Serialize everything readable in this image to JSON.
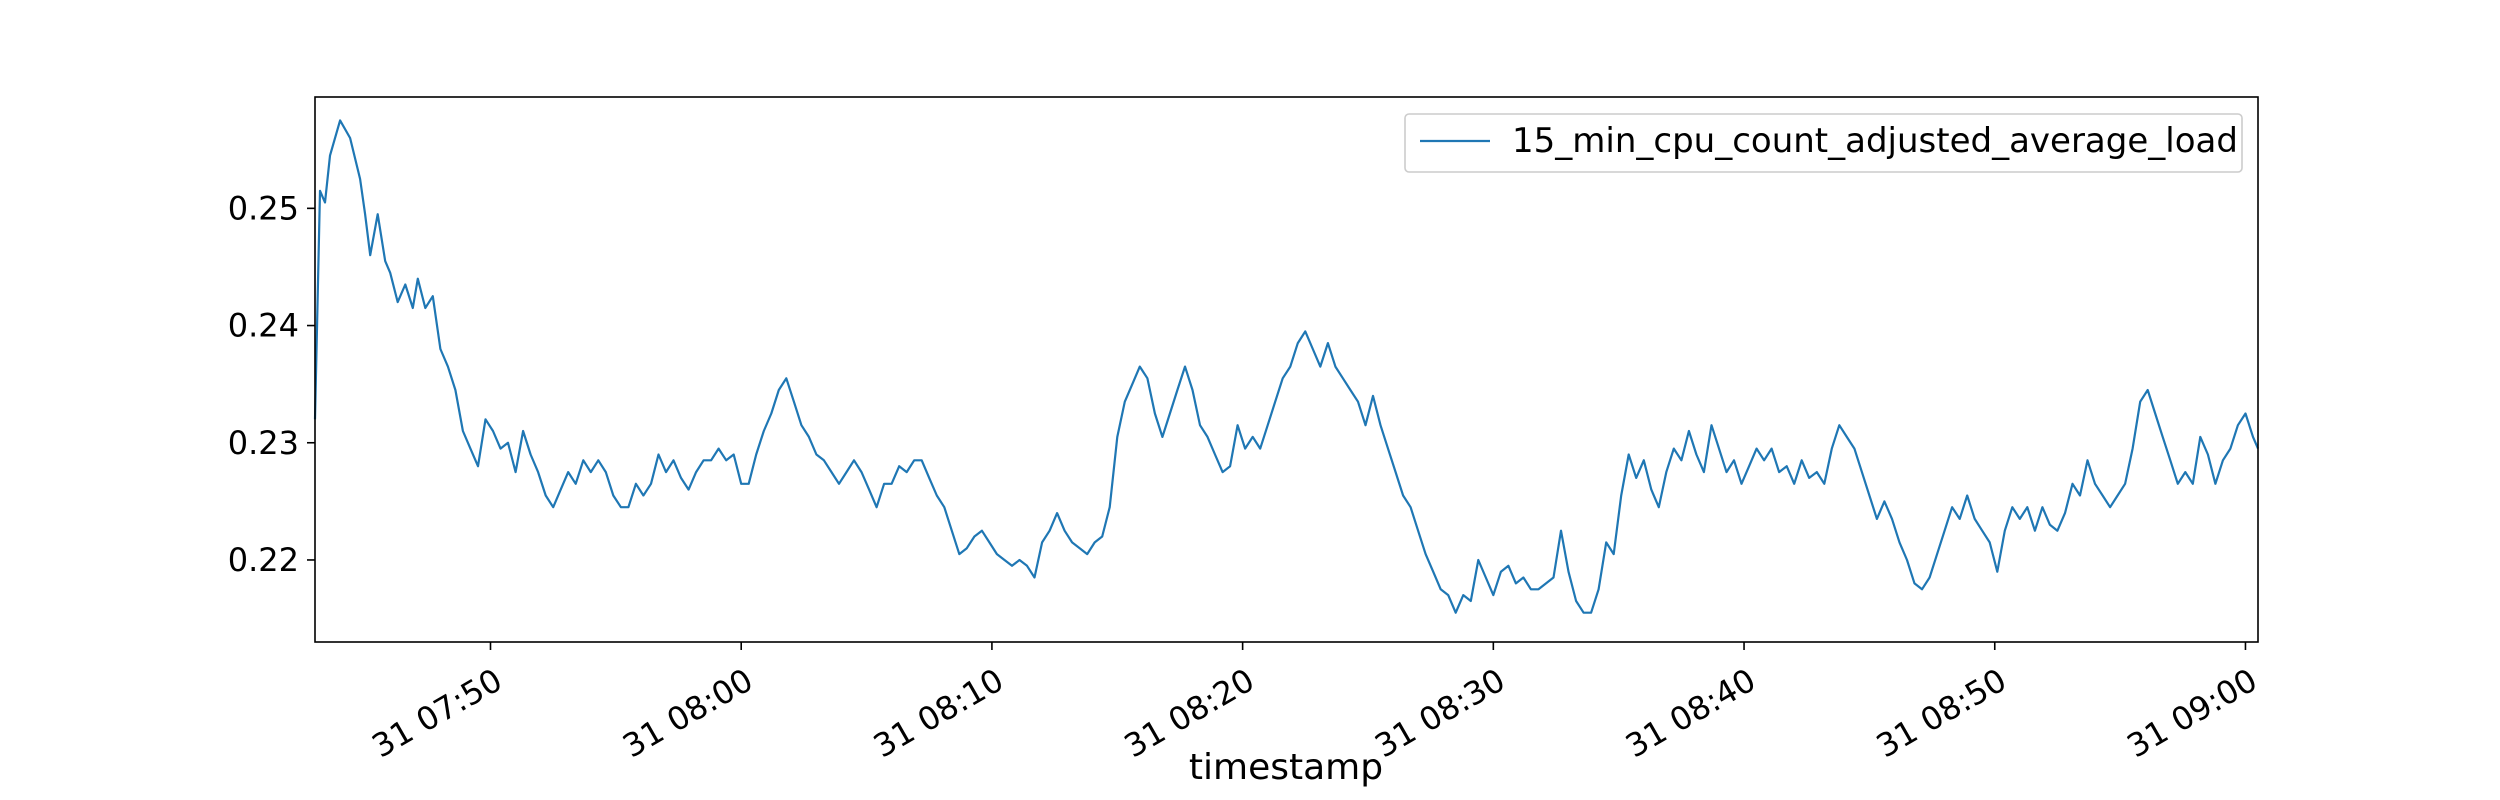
{
  "colors": {
    "series": "#1f77b4",
    "axis": "#000000",
    "legend_border": "#cccccc",
    "background": "#ffffff"
  },
  "chart_data": {
    "type": "line",
    "title": "",
    "xlabel": "timestamp",
    "ylabel": "",
    "grid": false,
    "legend_placement": "top-right",
    "xlim": [
      "31 07:43",
      "31 09:00:30"
    ],
    "ylim": [
      0.213,
      0.2595
    ],
    "x_ticks": [
      "31 07:50",
      "31 08:00",
      "31 08:10",
      "31 08:20",
      "31 08:30",
      "31 08:40",
      "31 08:50",
      "31 09:00"
    ],
    "y_ticks": [
      "0.22",
      "0.23",
      "0.24",
      "0.25"
    ],
    "series": [
      {
        "name": "15_min_cpu_count_adjusted_average_load",
        "points": [
          [
            "31 07:43",
            0.232
          ],
          [
            "31 07:43:12",
            0.2515
          ],
          [
            "31 07:43:24",
            0.2505
          ],
          [
            "31 07:43:36",
            0.2545
          ],
          [
            "31 07:44",
            0.2575
          ],
          [
            "31 07:44:24",
            0.256
          ],
          [
            "31 07:44:48",
            0.2525
          ],
          [
            "31 07:45",
            0.2495
          ],
          [
            "31 07:45:12",
            0.246
          ],
          [
            "31 07:45:30",
            0.2495
          ],
          [
            "31 07:45:48",
            0.2455
          ],
          [
            "31 07:46",
            0.2445
          ],
          [
            "31 07:46:18",
            0.242
          ],
          [
            "31 07:46:36",
            0.2435
          ],
          [
            "31 07:46:54",
            0.2415
          ],
          [
            "31 07:47:06",
            0.244
          ],
          [
            "31 07:47:24",
            0.2415
          ],
          [
            "31 07:47:42",
            0.2425
          ],
          [
            "31 07:48",
            0.238
          ],
          [
            "31 07:48:18",
            0.2365
          ],
          [
            "31 07:48:36",
            0.2345
          ],
          [
            "31 07:48:54",
            0.231
          ],
          [
            "31 07:49:12",
            0.2295
          ],
          [
            "31 07:49:30",
            0.228
          ],
          [
            "31 07:49:48",
            0.232
          ],
          [
            "31 07:50:06",
            0.231
          ],
          [
            "31 07:50:24",
            0.2295
          ],
          [
            "31 07:50:42",
            0.23
          ],
          [
            "31 07:51",
            0.2275
          ],
          [
            "31 07:51:18",
            0.231
          ],
          [
            "31 07:51:36",
            0.229
          ],
          [
            "31 07:51:54",
            0.2275
          ],
          [
            "31 07:52:12",
            0.2255
          ],
          [
            "31 07:52:30",
            0.2245
          ],
          [
            "31 07:52:48",
            0.226
          ],
          [
            "31 07:53:06",
            0.2275
          ],
          [
            "31 07:53:24",
            0.2265
          ],
          [
            "31 07:53:42",
            0.2285
          ],
          [
            "31 07:54",
            0.2275
          ],
          [
            "31 07:54:18",
            0.2285
          ],
          [
            "31 07:54:36",
            0.2275
          ],
          [
            "31 07:54:54",
            0.2255
          ],
          [
            "31 07:55:12",
            0.2245
          ],
          [
            "31 07:55:30",
            0.2245
          ],
          [
            "31 07:55:48",
            0.2265
          ],
          [
            "31 07:56:06",
            0.2255
          ],
          [
            "31 07:56:24",
            0.2265
          ],
          [
            "31 07:56:42",
            0.229
          ],
          [
            "31 07:57",
            0.2275
          ],
          [
            "31 07:57:18",
            0.2285
          ],
          [
            "31 07:57:36",
            0.227
          ],
          [
            "31 07:57:54",
            0.226
          ],
          [
            "31 07:58:12",
            0.2275
          ],
          [
            "31 07:58:30",
            0.2285
          ],
          [
            "31 07:58:48",
            0.2285
          ],
          [
            "31 07:59:06",
            0.2295
          ],
          [
            "31 07:59:24",
            0.2285
          ],
          [
            "31 07:59:42",
            0.229
          ],
          [
            "31 08:00",
            0.2265
          ],
          [
            "31 08:00:18",
            0.2265
          ],
          [
            "31 08:00:36",
            0.229
          ],
          [
            "31 08:00:54",
            0.231
          ],
          [
            "31 08:01:12",
            0.2325
          ],
          [
            "31 08:01:30",
            0.2345
          ],
          [
            "31 08:01:48",
            0.2355
          ],
          [
            "31 08:02:06",
            0.2335
          ],
          [
            "31 08:02:24",
            0.2315
          ],
          [
            "31 08:02:42",
            0.2305
          ],
          [
            "31 08:03",
            0.229
          ],
          [
            "31 08:03:18",
            0.2285
          ],
          [
            "31 08:03:36",
            0.2275
          ],
          [
            "31 08:03:54",
            0.2265
          ],
          [
            "31 08:04:12",
            0.2275
          ],
          [
            "31 08:04:30",
            0.2285
          ],
          [
            "31 08:04:48",
            0.2275
          ],
          [
            "31 08:05:06",
            0.226
          ],
          [
            "31 08:05:24",
            0.2245
          ],
          [
            "31 08:05:42",
            0.2265
          ],
          [
            "31 08:06",
            0.2265
          ],
          [
            "31 08:06:18",
            0.228
          ],
          [
            "31 08:06:36",
            0.2275
          ],
          [
            "31 08:06:54",
            0.2285
          ],
          [
            "31 08:07:12",
            0.2285
          ],
          [
            "31 08:07:30",
            0.227
          ],
          [
            "31 08:07:48",
            0.2255
          ],
          [
            "31 08:08:06",
            0.2245
          ],
          [
            "31 08:08:24",
            0.2225
          ],
          [
            "31 08:08:42",
            0.2205
          ],
          [
            "31 08:09",
            0.221
          ],
          [
            "31 08:09:18",
            0.222
          ],
          [
            "31 08:09:36",
            0.2225
          ],
          [
            "31 08:09:54",
            0.2215
          ],
          [
            "31 08:10:12",
            0.2205
          ],
          [
            "31 08:10:30",
            0.22
          ],
          [
            "31 08:10:48",
            0.2195
          ],
          [
            "31 08:11:06",
            0.22
          ],
          [
            "31 08:11:24",
            0.2195
          ],
          [
            "31 08:11:42",
            0.2185
          ],
          [
            "31 08:12",
            0.2215
          ],
          [
            "31 08:12:18",
            0.2225
          ],
          [
            "31 08:12:36",
            0.224
          ],
          [
            "31 08:12:54",
            0.2225
          ],
          [
            "31 08:13:12",
            0.2215
          ],
          [
            "31 08:13:30",
            0.221
          ],
          [
            "31 08:13:48",
            0.2205
          ],
          [
            "31 08:14:06",
            0.2215
          ],
          [
            "31 08:14:24",
            0.222
          ],
          [
            "31 08:14:42",
            0.2245
          ],
          [
            "31 08:15",
            0.2305
          ],
          [
            "31 08:15:18",
            0.2335
          ],
          [
            "31 08:15:36",
            0.235
          ],
          [
            "31 08:15:54",
            0.2365
          ],
          [
            "31 08:16:12",
            0.2355
          ],
          [
            "31 08:16:30",
            0.2325
          ],
          [
            "31 08:16:48",
            0.2305
          ],
          [
            "31 08:17:06",
            0.2325
          ],
          [
            "31 08:17:24",
            0.2345
          ],
          [
            "31 08:17:42",
            0.2365
          ],
          [
            "31 08:18",
            0.2345
          ],
          [
            "31 08:18:18",
            0.2315
          ],
          [
            "31 08:18:36",
            0.2305
          ],
          [
            "31 08:18:54",
            0.229
          ],
          [
            "31 08:19:12",
            0.2275
          ],
          [
            "31 08:19:30",
            0.228
          ],
          [
            "31 08:19:48",
            0.2315
          ],
          [
            "31 08:20:06",
            0.2295
          ],
          [
            "31 08:20:24",
            0.2305
          ],
          [
            "31 08:20:42",
            0.2295
          ],
          [
            "31 08:21",
            0.2315
          ],
          [
            "31 08:21:18",
            0.2335
          ],
          [
            "31 08:21:36",
            0.2355
          ],
          [
            "31 08:21:54",
            0.2365
          ],
          [
            "31 08:22:12",
            0.2385
          ],
          [
            "31 08:22:30",
            0.2395
          ],
          [
            "31 08:22:48",
            0.238
          ],
          [
            "31 08:23:06",
            0.2365
          ],
          [
            "31 08:23:24",
            0.2385
          ],
          [
            "31 08:23:42",
            0.2365
          ],
          [
            "31 08:24",
            0.2355
          ],
          [
            "31 08:24:18",
            0.2345
          ],
          [
            "31 08:24:36",
            0.2335
          ],
          [
            "31 08:24:54",
            0.2315
          ],
          [
            "31 08:25:12",
            0.234
          ],
          [
            "31 08:25:30",
            0.2315
          ],
          [
            "31 08:25:48",
            0.2295
          ],
          [
            "31 08:26:06",
            0.2275
          ],
          [
            "31 08:26:24",
            0.2255
          ],
          [
            "31 08:26:42",
            0.2245
          ],
          [
            "31 08:27",
            0.2225
          ],
          [
            "31 08:27:18",
            0.2205
          ],
          [
            "31 08:27:36",
            0.219
          ],
          [
            "31 08:27:54",
            0.2175
          ],
          [
            "31 08:28:12",
            0.217
          ],
          [
            "31 08:28:30",
            0.2155
          ],
          [
            "31 08:28:48",
            0.217
          ],
          [
            "31 08:29:06",
            0.2165
          ],
          [
            "31 08:29:24",
            0.22
          ],
          [
            "31 08:29:42",
            0.2185
          ],
          [
            "31 08:30",
            0.217
          ],
          [
            "31 08:30:18",
            0.219
          ],
          [
            "31 08:30:36",
            0.2195
          ],
          [
            "31 08:30:54",
            0.218
          ],
          [
            "31 08:31:12",
            0.2185
          ],
          [
            "31 08:31:30",
            0.2175
          ],
          [
            "31 08:31:48",
            0.2175
          ],
          [
            "31 08:32:06",
            0.218
          ],
          [
            "31 08:32:24",
            0.2185
          ],
          [
            "31 08:32:42",
            0.2225
          ],
          [
            "31 08:33",
            0.219
          ],
          [
            "31 08:33:18",
            0.2165
          ],
          [
            "31 08:33:36",
            0.2155
          ],
          [
            "31 08:33:54",
            0.2155
          ],
          [
            "31 08:34:12",
            0.2175
          ],
          [
            "31 08:34:30",
            0.2215
          ],
          [
            "31 08:34:48",
            0.2205
          ],
          [
            "31 08:35:06",
            0.2255
          ],
          [
            "31 08:35:24",
            0.229
          ],
          [
            "31 08:35:42",
            0.227
          ],
          [
            "31 08:36",
            0.2285
          ],
          [
            "31 08:36:18",
            0.226
          ],
          [
            "31 08:36:36",
            0.2245
          ],
          [
            "31 08:36:54",
            0.2275
          ],
          [
            "31 08:37:12",
            0.2295
          ],
          [
            "31 08:37:30",
            0.2285
          ],
          [
            "31 08:37:48",
            0.231
          ],
          [
            "31 08:38:06",
            0.229
          ],
          [
            "31 08:38:24",
            0.2275
          ],
          [
            "31 08:38:42",
            0.2315
          ],
          [
            "31 08:39",
            0.2295
          ],
          [
            "31 08:39:18",
            0.2275
          ],
          [
            "31 08:39:36",
            0.2285
          ],
          [
            "31 08:39:54",
            0.2265
          ],
          [
            "31 08:40:12",
            0.228
          ],
          [
            "31 08:40:30",
            0.2295
          ],
          [
            "31 08:40:48",
            0.2285
          ],
          [
            "31 08:41:06",
            0.2295
          ],
          [
            "31 08:41:24",
            0.2275
          ],
          [
            "31 08:41:42",
            0.228
          ],
          [
            "31 08:42",
            0.2265
          ],
          [
            "31 08:42:18",
            0.2285
          ],
          [
            "31 08:42:36",
            0.227
          ],
          [
            "31 08:42:54",
            0.2275
          ],
          [
            "31 08:43:12",
            0.2265
          ],
          [
            "31 08:43:30",
            0.2295
          ],
          [
            "31 08:43:48",
            0.2315
          ],
          [
            "31 08:44:06",
            0.2305
          ],
          [
            "31 08:44:24",
            0.2295
          ],
          [
            "31 08:44:42",
            0.2275
          ],
          [
            "31 08:45",
            0.2255
          ],
          [
            "31 08:45:18",
            0.2235
          ],
          [
            "31 08:45:36",
            0.225
          ],
          [
            "31 08:45:54",
            0.2235
          ],
          [
            "31 08:46:12",
            0.2215
          ],
          [
            "31 08:46:30",
            0.22
          ],
          [
            "31 08:46:48",
            0.218
          ],
          [
            "31 08:47:06",
            0.2175
          ],
          [
            "31 08:47:24",
            0.2185
          ],
          [
            "31 08:47:42",
            0.2205
          ],
          [
            "31 08:48",
            0.2225
          ],
          [
            "31 08:48:18",
            0.2245
          ],
          [
            "31 08:48:36",
            0.2235
          ],
          [
            "31 08:48:54",
            0.2255
          ],
          [
            "31 08:49:12",
            0.2235
          ],
          [
            "31 08:49:30",
            0.2225
          ],
          [
            "31 08:49:48",
            0.2215
          ],
          [
            "31 08:50:06",
            0.219
          ],
          [
            "31 08:50:24",
            0.2225
          ],
          [
            "31 08:50:42",
            0.2245
          ],
          [
            "31 08:51",
            0.2235
          ],
          [
            "31 08:51:18",
            0.2245
          ],
          [
            "31 08:51:36",
            0.2225
          ],
          [
            "31 08:51:54",
            0.2245
          ],
          [
            "31 08:52:12",
            0.223
          ],
          [
            "31 08:52:30",
            0.2225
          ],
          [
            "31 08:52:48",
            0.224
          ],
          [
            "31 08:53:06",
            0.2265
          ],
          [
            "31 08:53:24",
            0.2255
          ],
          [
            "31 08:53:42",
            0.2285
          ],
          [
            "31 08:54",
            0.2265
          ],
          [
            "31 08:54:18",
            0.2255
          ],
          [
            "31 08:54:36",
            0.2245
          ],
          [
            "31 08:54:54",
            0.2255
          ],
          [
            "31 08:55:12",
            0.2265
          ],
          [
            "31 08:55:30",
            0.2295
          ],
          [
            "31 08:55:48",
            0.2335
          ],
          [
            "31 08:56:06",
            0.2345
          ],
          [
            "31 08:56:24",
            0.2325
          ],
          [
            "31 08:56:42",
            0.2305
          ],
          [
            "31 08:57",
            0.2285
          ],
          [
            "31 08:57:18",
            0.2265
          ],
          [
            "31 08:57:36",
            0.2275
          ],
          [
            "31 08:57:54",
            0.2265
          ],
          [
            "31 08:58:12",
            0.2305
          ],
          [
            "31 08:58:30",
            0.229
          ],
          [
            "31 08:58:48",
            0.2265
          ],
          [
            "31 08:59:06",
            0.2285
          ],
          [
            "31 08:59:24",
            0.2295
          ],
          [
            "31 08:59:42",
            0.2315
          ],
          [
            "31 09:00",
            0.2325
          ],
          [
            "31 09:00:18",
            0.2305
          ],
          [
            "31 09:00:30",
            0.2295
          ]
        ]
      }
    ]
  }
}
